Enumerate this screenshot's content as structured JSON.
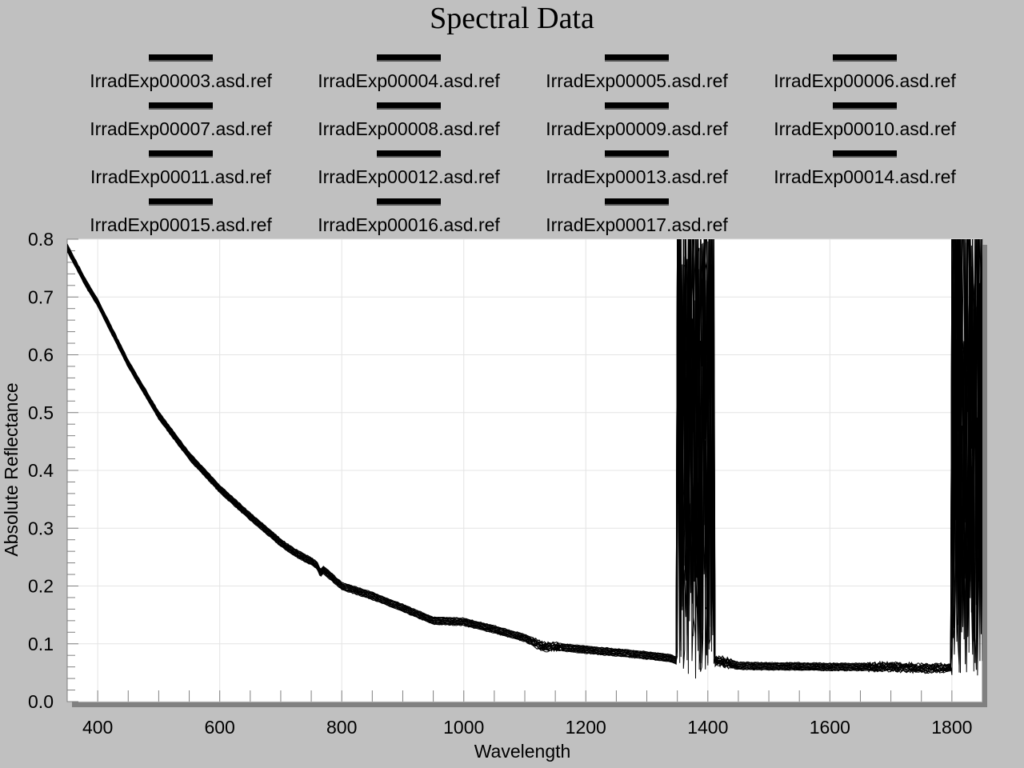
{
  "chart_data": {
    "type": "line",
    "title": "Spectral Data",
    "xlabel": "Wavelength",
    "ylabel": "Absolute Reflectance",
    "xlim": [
      350,
      1850
    ],
    "ylim": [
      0.0,
      0.8
    ],
    "x_ticks": [
      400,
      600,
      800,
      1000,
      1200,
      1400,
      1600,
      1800
    ],
    "y_ticks": [
      "0.0",
      "0.1",
      "0.2",
      "0.3",
      "0.4",
      "0.5",
      "0.6",
      "0.7",
      "0.8"
    ],
    "grid": true,
    "legend_position": "top",
    "line_color": "#000000",
    "series": [
      {
        "name": "IrradExp00003.asd.ref"
      },
      {
        "name": "IrradExp00004.asd.ref"
      },
      {
        "name": "IrradExp00005.asd.ref"
      },
      {
        "name": "IrradExp00006.asd.ref"
      },
      {
        "name": "IrradExp00007.asd.ref"
      },
      {
        "name": "IrradExp00008.asd.ref"
      },
      {
        "name": "IrradExp00009.asd.ref"
      },
      {
        "name": "IrradExp00010.asd.ref"
      },
      {
        "name": "IrradExp00011.asd.ref"
      },
      {
        "name": "IrradExp00012.asd.ref"
      },
      {
        "name": "IrradExp00013.asd.ref"
      },
      {
        "name": "IrradExp00014.asd.ref"
      },
      {
        "name": "IrradExp00015.asd.ref"
      },
      {
        "name": "IrradExp00016.asd.ref"
      },
      {
        "name": "IrradExp00017.asd.ref"
      }
    ],
    "curve": {
      "x": [
        350,
        380,
        400,
        450,
        500,
        550,
        600,
        650,
        700,
        720,
        740,
        750,
        760,
        765,
        770,
        800,
        850,
        900,
        950,
        1000,
        1050,
        1100,
        1130,
        1150,
        1200,
        1250,
        1300,
        1340,
        1350,
        1360,
        1400,
        1420,
        1450,
        1500,
        1550,
        1600,
        1650,
        1700,
        1750,
        1790,
        1800,
        1810,
        1850
      ],
      "y": [
        0.785,
        0.725,
        0.69,
        0.585,
        0.495,
        0.425,
        0.368,
        0.32,
        0.275,
        0.26,
        0.248,
        0.243,
        0.235,
        0.222,
        0.228,
        0.2,
        0.183,
        0.162,
        0.14,
        0.138,
        0.125,
        0.11,
        0.095,
        0.095,
        0.09,
        0.085,
        0.08,
        0.075,
        0.07,
        0.07,
        0.07,
        0.07,
        0.062,
        0.061,
        0.061,
        0.06,
        0.06,
        0.06,
        0.058,
        0.058,
        0.06,
        0.065,
        0.07
      ]
    },
    "noise_bands": [
      [
        1350,
        1410
      ],
      [
        1800,
        1850
      ]
    ]
  }
}
